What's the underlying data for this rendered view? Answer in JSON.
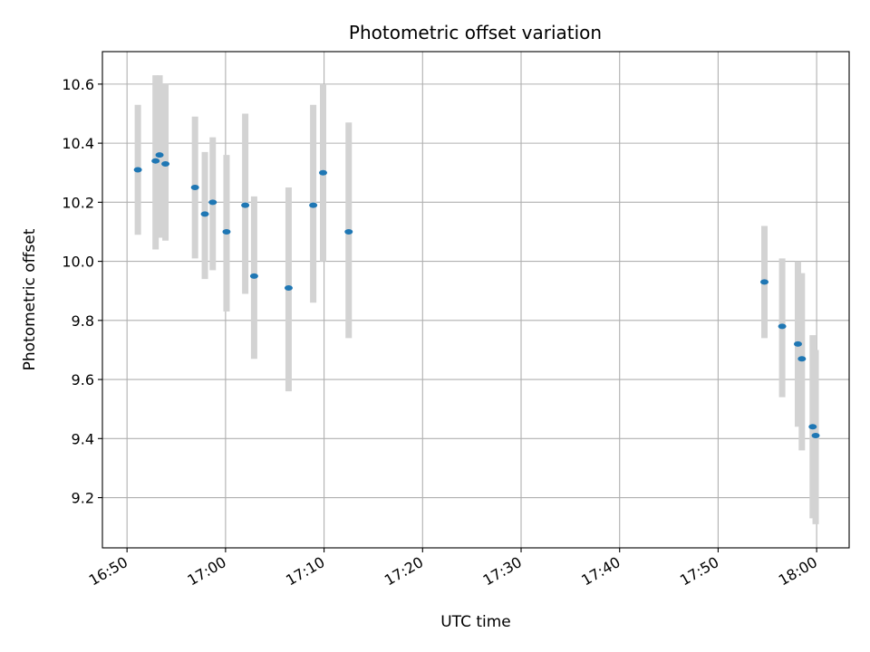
{
  "chart_data": {
    "type": "scatter",
    "title": "Photometric offset variation",
    "xlabel": "UTC time",
    "ylabel": "Photometric offset",
    "x_unit": "minutes since 16:00 UTC",
    "xlim": [
      "16:47.5",
      "18:03.3"
    ],
    "ylim": [
      9.03,
      10.71
    ],
    "x_ticks": [
      "16:50",
      "17:00",
      "17:10",
      "17:20",
      "17:30",
      "17:40",
      "17:50",
      "18:00"
    ],
    "y_ticks": [
      "9.2",
      "9.4",
      "9.6",
      "9.8",
      "10.0",
      "10.2",
      "10.4",
      "10.6"
    ],
    "grid": true,
    "colors": {
      "point": "#1f77b4",
      "errorbar": "#d3d3d3",
      "grid": "#b0b0b0"
    },
    "points": [
      {
        "time": "16:51.1",
        "y": 10.31,
        "yerr_low": 10.09,
        "yerr_high": 10.53
      },
      {
        "time": "16:52.9",
        "y": 10.34,
        "yerr_low": 10.04,
        "yerr_high": 10.63
      },
      {
        "time": "16:53.3",
        "y": 10.36,
        "yerr_low": 10.08,
        "yerr_high": 10.63
      },
      {
        "time": "16:53.9",
        "y": 10.33,
        "yerr_low": 10.07,
        "yerr_high": 10.6
      },
      {
        "time": "16:56.9",
        "y": 10.25,
        "yerr_low": 10.01,
        "yerr_high": 10.49
      },
      {
        "time": "16:57.9",
        "y": 10.16,
        "yerr_low": 9.94,
        "yerr_high": 10.37
      },
      {
        "time": "16:58.7",
        "y": 10.2,
        "yerr_low": 9.97,
        "yerr_high": 10.42
      },
      {
        "time": "17:00.1",
        "y": 10.1,
        "yerr_low": 9.83,
        "yerr_high": 10.36
      },
      {
        "time": "17:02.0",
        "y": 10.19,
        "yerr_low": 9.89,
        "yerr_high": 10.5
      },
      {
        "time": "17:02.9",
        "y": 9.95,
        "yerr_low": 9.67,
        "yerr_high": 10.22
      },
      {
        "time": "17:06.4",
        "y": 9.91,
        "yerr_low": 9.56,
        "yerr_high": 10.25
      },
      {
        "time": "17:08.9",
        "y": 10.19,
        "yerr_low": 9.86,
        "yerr_high": 10.53
      },
      {
        "time": "17:09.9",
        "y": 10.3,
        "yerr_low": 10.0,
        "yerr_high": 10.6
      },
      {
        "time": "17:12.5",
        "y": 10.1,
        "yerr_low": 9.74,
        "yerr_high": 10.47
      },
      {
        "time": "17:54.7",
        "y": 9.93,
        "yerr_low": 9.74,
        "yerr_high": 10.12
      },
      {
        "time": "17:56.5",
        "y": 9.78,
        "yerr_low": 9.54,
        "yerr_high": 10.01
      },
      {
        "time": "17:58.1",
        "y": 9.72,
        "yerr_low": 9.44,
        "yerr_high": 10.0
      },
      {
        "time": "17:58.5",
        "y": 9.67,
        "yerr_low": 9.36,
        "yerr_high": 9.96
      },
      {
        "time": "17:59.6",
        "y": 9.44,
        "yerr_low": 9.13,
        "yerr_high": 9.75
      },
      {
        "time": "17:59.9",
        "y": 9.41,
        "yerr_low": 9.11,
        "yerr_high": 9.7
      }
    ]
  }
}
